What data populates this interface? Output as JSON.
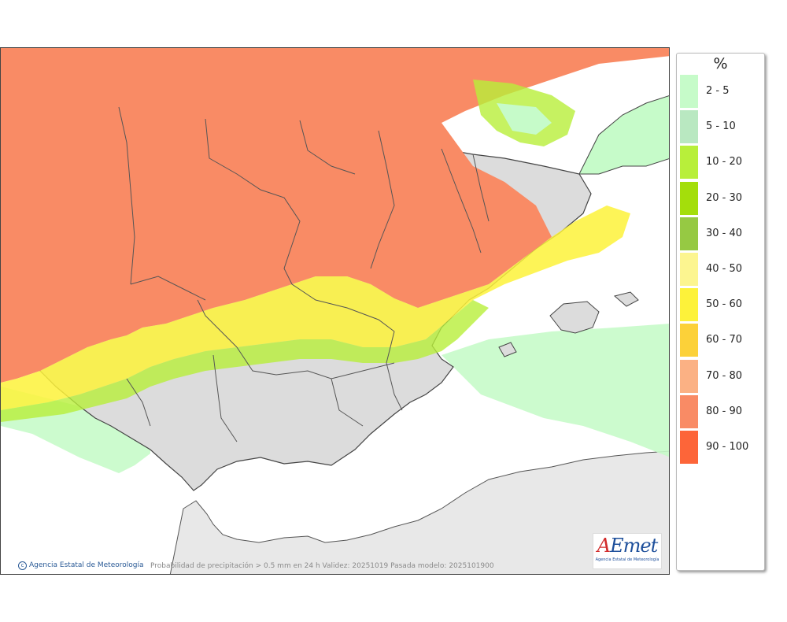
{
  "map": {
    "credit": "Agencia Estatal de Meteorología",
    "caption": "Probabilidad de precipitación > 0.5 mm en 24 h Validez: 20251019 Pasada modelo: 2025101900",
    "logo_text": "AEmet",
    "logo_sub": "Agencia Estatal de Meteorología"
  },
  "legend": {
    "title": "%",
    "items": [
      {
        "label": "2 - 5",
        "color": "#c6fbc9"
      },
      {
        "label": "5 - 10",
        "color": "#b9e8c1"
      },
      {
        "label": "10 - 20",
        "color": "#b8ef3a"
      },
      {
        "label": "20 - 30",
        "color": "#a4de0b"
      },
      {
        "label": "30 - 40",
        "color": "#96c943"
      },
      {
        "label": "40 - 50",
        "color": "#fcf590"
      },
      {
        "label": "50 - 60",
        "color": "#fdf23a"
      },
      {
        "label": "60 - 70",
        "color": "#fcd139"
      },
      {
        "label": "70 - 80",
        "color": "#fbb184"
      },
      {
        "label": "80 - 90",
        "color": "#f98b65"
      },
      {
        "label": "90 - 100",
        "color": "#fd6539"
      }
    ]
  }
}
